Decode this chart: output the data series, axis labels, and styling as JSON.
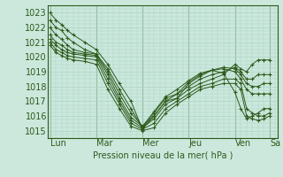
{
  "bg_color": "#cce8dc",
  "grid_color": "#aad4c4",
  "line_color": "#2d5a1b",
  "xlabel": "Pression niveau de la mer( hPa )",
  "ylim": [
    1014.5,
    1023.5
  ],
  "yticks": [
    1015,
    1016,
    1017,
    1018,
    1019,
    1020,
    1021,
    1022,
    1023
  ],
  "xtick_labels": [
    "Lun",
    "Mar",
    "Mer",
    "Jeu",
    "Ven",
    "Sa"
  ],
  "xtick_positions": [
    0,
    24,
    48,
    72,
    96,
    114
  ],
  "xlim": [
    -1,
    118
  ],
  "font_color": "#2d5a1b",
  "font_size": 7,
  "marker": "+",
  "markersize": 2.5,
  "linewidth": 0.7,
  "series": [
    [
      0,
      1023.0,
      3,
      1022.5,
      6,
      1022.2,
      9,
      1021.8,
      12,
      1021.5,
      18,
      1021.0,
      24,
      1020.5,
      30,
      1019.5,
      36,
      1018.2,
      42,
      1017.0,
      48,
      1015.1,
      54,
      1016.0,
      60,
      1017.0,
      66,
      1017.2,
      72,
      1018.2,
      78,
      1018.7,
      84,
      1019.1,
      90,
      1018.9,
      96,
      1017.6,
      99,
      1016.5,
      102,
      1015.8,
      105,
      1016.0,
      108,
      1016.2,
      111,
      1016.5,
      114,
      1016.5
    ],
    [
      0,
      1022.5,
      3,
      1022.0,
      6,
      1021.8,
      9,
      1021.3,
      12,
      1021.0,
      18,
      1020.5,
      24,
      1020.2,
      30,
      1019.2,
      36,
      1017.8,
      42,
      1016.5,
      48,
      1015.2,
      54,
      1016.2,
      60,
      1017.2,
      66,
      1017.5,
      72,
      1018.3,
      78,
      1018.8,
      84,
      1019.1,
      90,
      1019.2,
      96,
      1019.0,
      99,
      1018.5,
      102,
      1017.8,
      105,
      1017.5,
      108,
      1017.5,
      111,
      1017.5,
      114,
      1017.5
    ],
    [
      0,
      1022.0,
      3,
      1021.5,
      6,
      1021.2,
      9,
      1020.8,
      12,
      1020.5,
      18,
      1020.3,
      24,
      1020.2,
      30,
      1019.0,
      36,
      1017.5,
      42,
      1016.2,
      48,
      1015.3,
      54,
      1016.3,
      60,
      1017.3,
      66,
      1017.8,
      72,
      1018.4,
      78,
      1018.9,
      84,
      1019.1,
      90,
      1019.3,
      96,
      1019.2,
      99,
      1018.8,
      102,
      1018.2,
      105,
      1018.0,
      108,
      1018.0,
      111,
      1018.2,
      114,
      1018.2
    ],
    [
      0,
      1021.5,
      3,
      1021.0,
      6,
      1020.8,
      9,
      1020.5,
      12,
      1020.3,
      18,
      1020.2,
      24,
      1020.1,
      30,
      1018.8,
      36,
      1017.2,
      42,
      1015.9,
      48,
      1015.3,
      54,
      1016.0,
      60,
      1017.0,
      66,
      1017.5,
      72,
      1018.0,
      78,
      1018.5,
      84,
      1018.8,
      90,
      1019.0,
      96,
      1019.3,
      99,
      1019.0,
      102,
      1018.5,
      105,
      1018.5,
      108,
      1018.8,
      111,
      1018.8,
      114,
      1018.8
    ],
    [
      0,
      1021.2,
      3,
      1020.8,
      6,
      1020.5,
      9,
      1020.3,
      12,
      1020.2,
      18,
      1020.1,
      24,
      1020.0,
      30,
      1018.5,
      36,
      1017.0,
      42,
      1015.7,
      48,
      1015.2,
      54,
      1015.8,
      60,
      1016.8,
      66,
      1017.2,
      72,
      1017.8,
      78,
      1018.2,
      84,
      1018.5,
      90,
      1018.8,
      96,
      1019.5,
      99,
      1019.2,
      102,
      1019.0,
      105,
      1019.5,
      108,
      1019.8,
      111,
      1019.8,
      114,
      1019.8
    ],
    [
      0,
      1021.0,
      3,
      1020.5,
      6,
      1020.3,
      9,
      1020.1,
      12,
      1020.0,
      18,
      1019.9,
      24,
      1019.8,
      30,
      1018.2,
      36,
      1016.8,
      42,
      1015.5,
      48,
      1015.1,
      54,
      1015.5,
      60,
      1016.5,
      66,
      1017.0,
      72,
      1017.5,
      78,
      1018.0,
      84,
      1018.2,
      90,
      1018.5,
      96,
      1018.5,
      99,
      1018.2,
      102,
      1016.5,
      105,
      1016.2,
      108,
      1016.0,
      111,
      1016.0,
      114,
      1016.2
    ],
    [
      0,
      1020.8,
      3,
      1020.3,
      6,
      1020.1,
      9,
      1019.9,
      12,
      1019.8,
      18,
      1019.7,
      24,
      1019.5,
      30,
      1017.8,
      36,
      1016.5,
      42,
      1015.3,
      48,
      1015.0,
      54,
      1015.2,
      60,
      1016.2,
      66,
      1016.8,
      72,
      1017.3,
      78,
      1017.8,
      84,
      1018.0,
      90,
      1018.2,
      96,
      1018.2,
      99,
      1017.8,
      102,
      1016.0,
      105,
      1015.8,
      108,
      1015.7,
      111,
      1015.8,
      114,
      1016.0
    ]
  ]
}
